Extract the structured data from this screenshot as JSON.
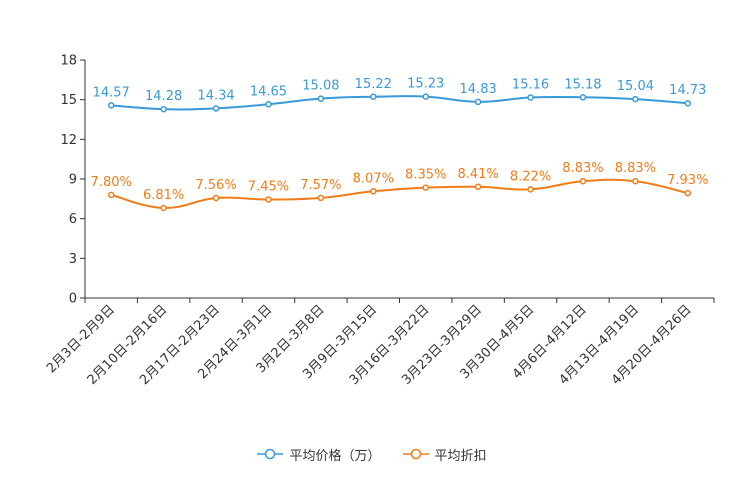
{
  "chart_data": {
    "type": "line",
    "categories": [
      "2月3日-2月9日",
      "2月10日-2月16日",
      "2月17日-2月23日",
      "2月24日-3月1日",
      "3月2日-3月8日",
      "3月9日-3月15日",
      "3月16日-3月22日",
      "3月23日-3月29日",
      "3月30日-4月5日",
      "4月6日-4月12日",
      "4月13日-4月19日",
      "4月20日-4月26日"
    ],
    "ylim": [
      0,
      18
    ],
    "yticks": [
      0,
      3,
      6,
      9,
      12,
      15,
      18
    ],
    "series": [
      {
        "name": "平均价格（万）",
        "color": "#3a9ad9",
        "values": [
          14.57,
          14.28,
          14.34,
          14.65,
          15.08,
          15.22,
          15.23,
          14.83,
          15.16,
          15.18,
          15.04,
          14.73
        ],
        "labels": [
          "14.57",
          "14.28",
          "14.34",
          "14.65",
          "15.08",
          "15.22",
          "15.23",
          "14.83",
          "15.16",
          "15.18",
          "15.04",
          "14.73"
        ]
      },
      {
        "name": "平均折扣",
        "color": "#f07d1a",
        "values": [
          7.8,
          6.81,
          7.56,
          7.45,
          7.57,
          8.07,
          8.35,
          8.41,
          8.22,
          8.83,
          8.83,
          7.93
        ],
        "labels": [
          "7.80%",
          "6.81%",
          "7.56%",
          "7.45%",
          "7.57%",
          "8.07%",
          "8.35%",
          "8.41%",
          "8.22%",
          "8.83%",
          "8.83%",
          "7.93%"
        ]
      }
    ],
    "legend_position": "bottom-center",
    "grid": false
  }
}
